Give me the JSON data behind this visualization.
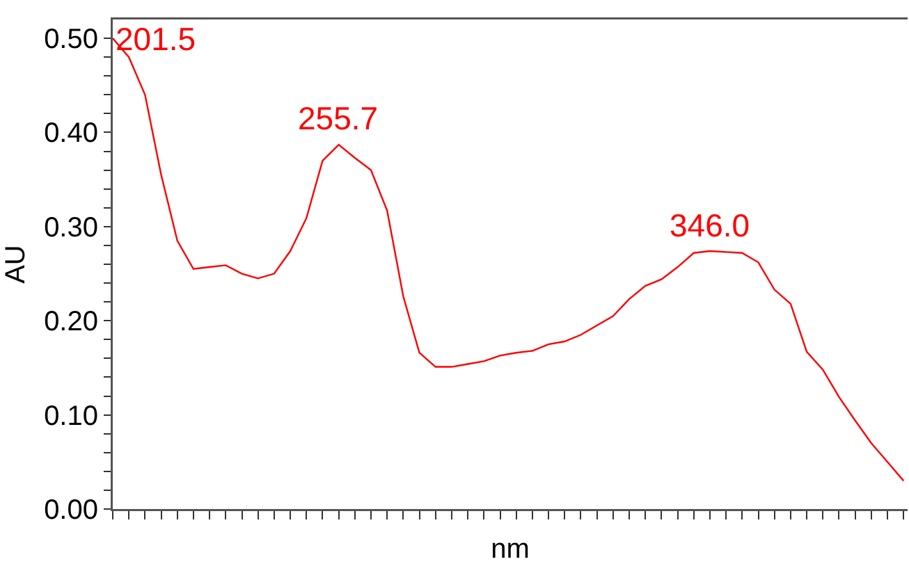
{
  "chart_data": {
    "type": "line",
    "xlabel": "nm",
    "ylabel": "AU",
    "categories": [
      null,
      null,
      null,
      null,
      null,
      null,
      null,
      null,
      null,
      null,
      null,
      null,
      null,
      null,
      null,
      null,
      null,
      null,
      null,
      null,
      null,
      null,
      null,
      null,
      null,
      null,
      null,
      null,
      null,
      null,
      null,
      null,
      null,
      null,
      null,
      null,
      null,
      null,
      null,
      null,
      null,
      null,
      null,
      null,
      null,
      null,
      null,
      null,
      null,
      null
    ],
    "series": [
      {
        "color": "#ff0000",
        "values": [
          0.5,
          0.48,
          0.44,
          0.355,
          0.285,
          0.255,
          0.257,
          0.259,
          0.25,
          0.245,
          0.25,
          0.274,
          0.309,
          0.37,
          0.387,
          0.373,
          0.36,
          0.317,
          0.226,
          0.166,
          0.151,
          0.151,
          0.154,
          0.157,
          0.163,
          0.166,
          0.168,
          0.175,
          0.178,
          0.185,
          0.195,
          0.205,
          0.223,
          0.237,
          0.244,
          0.257,
          0.272,
          0.274,
          0.273,
          0.272,
          0.262,
          0.233,
          0.218,
          0.167,
          0.148,
          0.119,
          0.094,
          0.07,
          0.05,
          0.03
        ]
      }
    ],
    "annotations": [
      "201.5",
      "255.7",
      "346.0"
    ],
    "ylim": [
      0,
      0.52
    ],
    "yticks": [
      {
        "value": 0,
        "label": "0.00"
      },
      {
        "value": 0.02,
        "label": null
      },
      {
        "value": 0.04,
        "label": null
      },
      {
        "value": 0.06,
        "label": null
      },
      {
        "value": 0.08,
        "label": null
      },
      {
        "value": 0.1,
        "label": "0.10"
      },
      {
        "value": 0.12,
        "label": null
      },
      {
        "value": 0.14,
        "label": null
      },
      {
        "value": 0.16,
        "label": null
      },
      {
        "value": 0.18,
        "label": null
      },
      {
        "value": 0.2,
        "label": "0.20"
      },
      {
        "value": 0.22,
        "label": null
      },
      {
        "value": 0.24,
        "label": null
      },
      {
        "value": 0.26,
        "label": null
      },
      {
        "value": 0.28,
        "label": null
      },
      {
        "value": 0.3,
        "label": "0.30"
      },
      {
        "value": 0.32,
        "label": null
      },
      {
        "value": 0.34,
        "label": null
      },
      {
        "value": 0.36,
        "label": null
      },
      {
        "value": 0.38,
        "label": null
      },
      {
        "value": 0.4,
        "label": "0.40"
      },
      {
        "value": 0.42,
        "label": null
      },
      {
        "value": 0.44,
        "label": null
      },
      {
        "value": 0.46,
        "label": null
      },
      {
        "value": 0.48,
        "label": null
      },
      {
        "value": 0.5,
        "label": "0.50"
      }
    ],
    "tick_labels": "y",
    "grid": false,
    "marker": "none",
    "line_style": "solid"
  }
}
